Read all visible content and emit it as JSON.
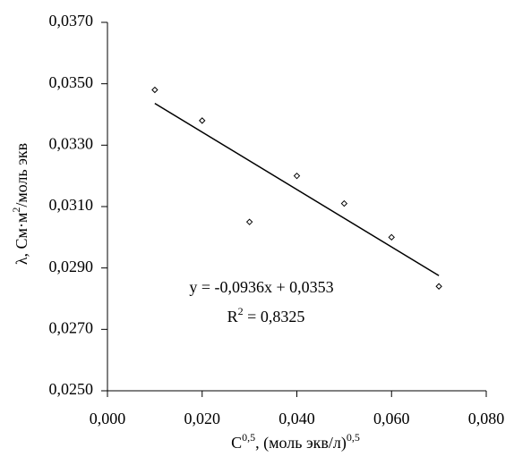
{
  "chart_data": {
    "type": "scatter",
    "x": [
      0.01,
      0.02,
      0.03,
      0.04,
      0.05,
      0.06,
      0.07
    ],
    "values": [
      0.0348,
      0.0338,
      0.0305,
      0.032,
      0.0311,
      0.03,
      0.0284
    ],
    "color": "#000000",
    "trendline": {
      "x": [
        0.01,
        0.07
      ],
      "values": [
        0.03436,
        0.02875
      ]
    },
    "equation": "y = -0,0936x + 0,0353",
    "r2": [
      "R",
      "2",
      " = 0,8325"
    ],
    "xlabel": [
      "C",
      "0,5",
      ", (моль экв/л)",
      "0,5"
    ],
    "ylabel": [
      "λ, См·м",
      "2",
      "/моль экв"
    ],
    "xlim": [
      0,
      0.08
    ],
    "xticks": [
      {
        "value": 0,
        "label": "0,000"
      },
      {
        "value": 0.02,
        "label": "0,020"
      },
      {
        "value": 0.04,
        "label": "0,040"
      },
      {
        "value": 0.06,
        "label": "0,060"
      },
      {
        "value": 0.08,
        "label": "0,080"
      }
    ],
    "ylim": [
      0.025,
      0.037
    ],
    "yticks": [
      {
        "value": 0.025,
        "label": "0,0250"
      },
      {
        "value": 0.027,
        "label": "0,0270"
      },
      {
        "value": 0.029,
        "label": "0,0290"
      },
      {
        "value": 0.031,
        "label": "0,0310"
      },
      {
        "value": 0.033,
        "label": "0,0330"
      },
      {
        "value": 0.035,
        "label": "0,0350"
      },
      {
        "value": 0.037,
        "label": "0,0370"
      }
    ],
    "grid": false
  }
}
